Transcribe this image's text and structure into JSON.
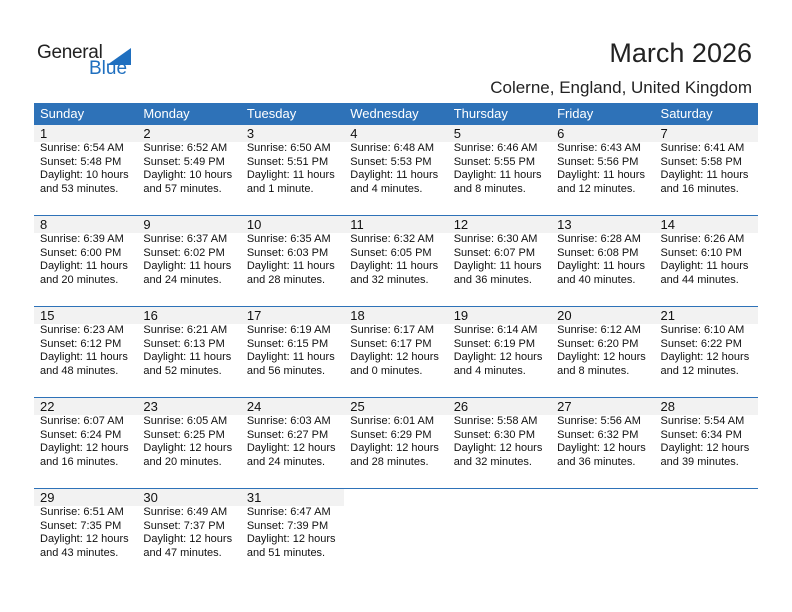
{
  "logo": {
    "line1": "General",
    "line2": "Blue"
  },
  "title": "March 2026",
  "location": "Colerne, England, United Kingdom",
  "weekdays": [
    "Sunday",
    "Monday",
    "Tuesday",
    "Wednesday",
    "Thursday",
    "Friday",
    "Saturday"
  ],
  "days": [
    {
      "day": "1",
      "sunrise": "Sunrise: 6:54 AM",
      "sunset": "Sunset: 5:48 PM",
      "daylight1": "Daylight: 10 hours",
      "daylight2": "and 53 minutes."
    },
    {
      "day": "2",
      "sunrise": "Sunrise: 6:52 AM",
      "sunset": "Sunset: 5:49 PM",
      "daylight1": "Daylight: 10 hours",
      "daylight2": "and 57 minutes."
    },
    {
      "day": "3",
      "sunrise": "Sunrise: 6:50 AM",
      "sunset": "Sunset: 5:51 PM",
      "daylight1": "Daylight: 11 hours",
      "daylight2": "and 1 minute."
    },
    {
      "day": "4",
      "sunrise": "Sunrise: 6:48 AM",
      "sunset": "Sunset: 5:53 PM",
      "daylight1": "Daylight: 11 hours",
      "daylight2": "and 4 minutes."
    },
    {
      "day": "5",
      "sunrise": "Sunrise: 6:46 AM",
      "sunset": "Sunset: 5:55 PM",
      "daylight1": "Daylight: 11 hours",
      "daylight2": "and 8 minutes."
    },
    {
      "day": "6",
      "sunrise": "Sunrise: 6:43 AM",
      "sunset": "Sunset: 5:56 PM",
      "daylight1": "Daylight: 11 hours",
      "daylight2": "and 12 minutes."
    },
    {
      "day": "7",
      "sunrise": "Sunrise: 6:41 AM",
      "sunset": "Sunset: 5:58 PM",
      "daylight1": "Daylight: 11 hours",
      "daylight2": "and 16 minutes."
    },
    {
      "day": "8",
      "sunrise": "Sunrise: 6:39 AM",
      "sunset": "Sunset: 6:00 PM",
      "daylight1": "Daylight: 11 hours",
      "daylight2": "and 20 minutes."
    },
    {
      "day": "9",
      "sunrise": "Sunrise: 6:37 AM",
      "sunset": "Sunset: 6:02 PM",
      "daylight1": "Daylight: 11 hours",
      "daylight2": "and 24 minutes."
    },
    {
      "day": "10",
      "sunrise": "Sunrise: 6:35 AM",
      "sunset": "Sunset: 6:03 PM",
      "daylight1": "Daylight: 11 hours",
      "daylight2": "and 28 minutes."
    },
    {
      "day": "11",
      "sunrise": "Sunrise: 6:32 AM",
      "sunset": "Sunset: 6:05 PM",
      "daylight1": "Daylight: 11 hours",
      "daylight2": "and 32 minutes."
    },
    {
      "day": "12",
      "sunrise": "Sunrise: 6:30 AM",
      "sunset": "Sunset: 6:07 PM",
      "daylight1": "Daylight: 11 hours",
      "daylight2": "and 36 minutes."
    },
    {
      "day": "13",
      "sunrise": "Sunrise: 6:28 AM",
      "sunset": "Sunset: 6:08 PM",
      "daylight1": "Daylight: 11 hours",
      "daylight2": "and 40 minutes."
    },
    {
      "day": "14",
      "sunrise": "Sunrise: 6:26 AM",
      "sunset": "Sunset: 6:10 PM",
      "daylight1": "Daylight: 11 hours",
      "daylight2": "and 44 minutes."
    },
    {
      "day": "15",
      "sunrise": "Sunrise: 6:23 AM",
      "sunset": "Sunset: 6:12 PM",
      "daylight1": "Daylight: 11 hours",
      "daylight2": "and 48 minutes."
    },
    {
      "day": "16",
      "sunrise": "Sunrise: 6:21 AM",
      "sunset": "Sunset: 6:13 PM",
      "daylight1": "Daylight: 11 hours",
      "daylight2": "and 52 minutes."
    },
    {
      "day": "17",
      "sunrise": "Sunrise: 6:19 AM",
      "sunset": "Sunset: 6:15 PM",
      "daylight1": "Daylight: 11 hours",
      "daylight2": "and 56 minutes."
    },
    {
      "day": "18",
      "sunrise": "Sunrise: 6:17 AM",
      "sunset": "Sunset: 6:17 PM",
      "daylight1": "Daylight: 12 hours",
      "daylight2": "and 0 minutes."
    },
    {
      "day": "19",
      "sunrise": "Sunrise: 6:14 AM",
      "sunset": "Sunset: 6:19 PM",
      "daylight1": "Daylight: 12 hours",
      "daylight2": "and 4 minutes."
    },
    {
      "day": "20",
      "sunrise": "Sunrise: 6:12 AM",
      "sunset": "Sunset: 6:20 PM",
      "daylight1": "Daylight: 12 hours",
      "daylight2": "and 8 minutes."
    },
    {
      "day": "21",
      "sunrise": "Sunrise: 6:10 AM",
      "sunset": "Sunset: 6:22 PM",
      "daylight1": "Daylight: 12 hours",
      "daylight2": "and 12 minutes."
    },
    {
      "day": "22",
      "sunrise": "Sunrise: 6:07 AM",
      "sunset": "Sunset: 6:24 PM",
      "daylight1": "Daylight: 12 hours",
      "daylight2": "and 16 minutes."
    },
    {
      "day": "23",
      "sunrise": "Sunrise: 6:05 AM",
      "sunset": "Sunset: 6:25 PM",
      "daylight1": "Daylight: 12 hours",
      "daylight2": "and 20 minutes."
    },
    {
      "day": "24",
      "sunrise": "Sunrise: 6:03 AM",
      "sunset": "Sunset: 6:27 PM",
      "daylight1": "Daylight: 12 hours",
      "daylight2": "and 24 minutes."
    },
    {
      "day": "25",
      "sunrise": "Sunrise: 6:01 AM",
      "sunset": "Sunset: 6:29 PM",
      "daylight1": "Daylight: 12 hours",
      "daylight2": "and 28 minutes."
    },
    {
      "day": "26",
      "sunrise": "Sunrise: 5:58 AM",
      "sunset": "Sunset: 6:30 PM",
      "daylight1": "Daylight: 12 hours",
      "daylight2": "and 32 minutes."
    },
    {
      "day": "27",
      "sunrise": "Sunrise: 5:56 AM",
      "sunset": "Sunset: 6:32 PM",
      "daylight1": "Daylight: 12 hours",
      "daylight2": "and 36 minutes."
    },
    {
      "day": "28",
      "sunrise": "Sunrise: 5:54 AM",
      "sunset": "Sunset: 6:34 PM",
      "daylight1": "Daylight: 12 hours",
      "daylight2": "and 39 minutes."
    },
    {
      "day": "29",
      "sunrise": "Sunrise: 6:51 AM",
      "sunset": "Sunset: 7:35 PM",
      "daylight1": "Daylight: 12 hours",
      "daylight2": "and 43 minutes."
    },
    {
      "day": "30",
      "sunrise": "Sunrise: 6:49 AM",
      "sunset": "Sunset: 7:37 PM",
      "daylight1": "Daylight: 12 hours",
      "daylight2": "and 47 minutes."
    },
    {
      "day": "31",
      "sunrise": "Sunrise: 6:47 AM",
      "sunset": "Sunset: 7:39 PM",
      "daylight1": "Daylight: 12 hours",
      "daylight2": "and 51 minutes."
    }
  ],
  "colors": {
    "header": "#2e72b8",
    "brand": "#1f6fbf",
    "dayband": "#f2f2f2"
  }
}
